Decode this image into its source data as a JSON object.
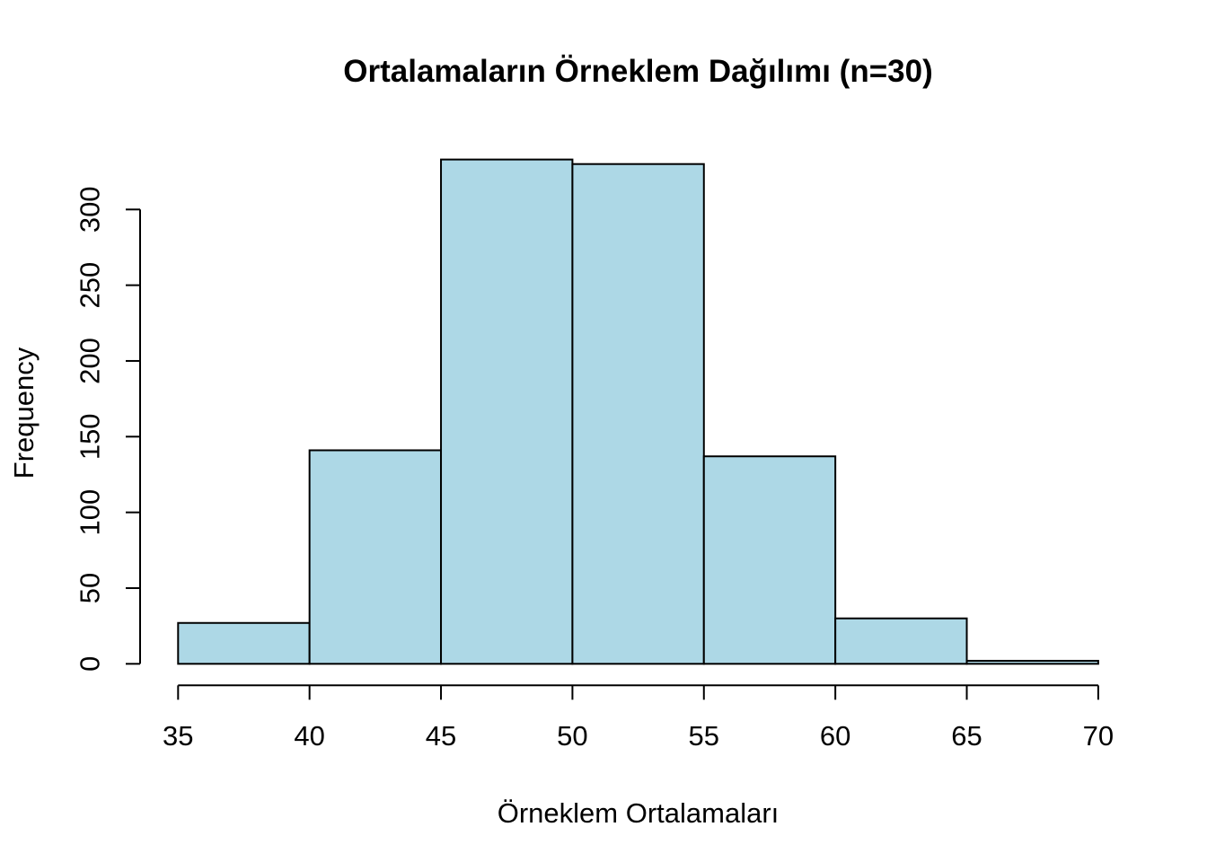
{
  "chart_data": {
    "type": "bar",
    "subtype": "histogram",
    "title": "Ortalamaların Örneklem Dağılımı (n=30)",
    "xlabel": "Örneklem Ortalamaları",
    "ylabel": "Frequency",
    "bin_edges": [
      35,
      40,
      45,
      50,
      55,
      60,
      65,
      70
    ],
    "counts": [
      27,
      141,
      333,
      330,
      137,
      30,
      2
    ],
    "x_ticks": [
      35,
      40,
      45,
      50,
      55,
      60,
      65,
      70
    ],
    "y_ticks": [
      0,
      50,
      100,
      150,
      200,
      250,
      300
    ],
    "xlim": [
      35,
      70
    ],
    "ylim": [
      0,
      300
    ],
    "grid": false,
    "legend": "none",
    "bar_fill": "#ADD8E6",
    "bar_stroke": "#000000",
    "axis_color": "#000000",
    "text_color": "#000000",
    "background": "#FFFFFF"
  }
}
